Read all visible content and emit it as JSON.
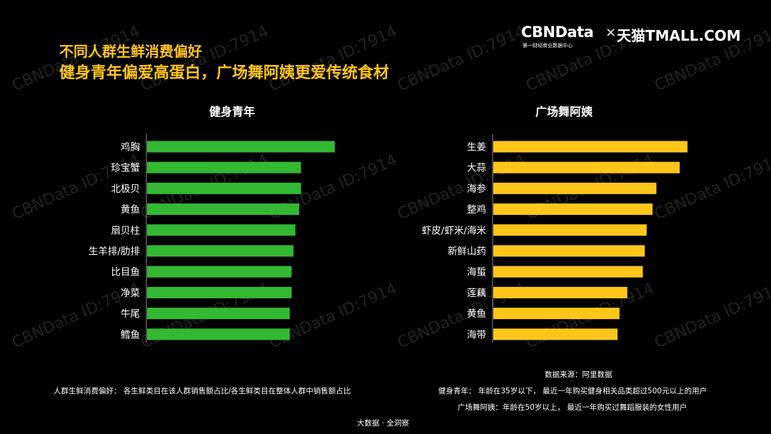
{
  "watermark": "CBNData ID:7914",
  "title": {
    "line1": "不同人群生鲜消费偏好",
    "line2": "健身青年偏爱高蛋白，广场舞阿姨更爱传统食材"
  },
  "logo": {
    "brand": "CBNData",
    "brand_sub": "第一财经商业数据中心",
    "separator": "×",
    "partner": "天猫TMALL.COM"
  },
  "colors": {
    "background": "#000000",
    "title": "#ffc61a",
    "fitness_bar": "#33b833",
    "auntie_bar": "#ffc61a"
  },
  "chart_data": [
    {
      "type": "bar",
      "orientation": "horizontal",
      "title": "健身青年",
      "categories": [
        "鸡胸",
        "珍宝蟹",
        "北极贝",
        "黄鱼",
        "扇贝柱",
        "生羊排/肋排",
        "比目鱼",
        "净菜",
        "牛尾",
        "鳕鱼"
      ],
      "values": [
        100,
        82,
        82,
        81,
        79,
        78,
        77,
        77,
        76,
        76
      ],
      "xlim": [
        0,
        100
      ],
      "grid": false,
      "color": "#33b833"
    },
    {
      "type": "bar",
      "orientation": "horizontal",
      "title": "广场舞阿姨",
      "categories": [
        "生姜",
        "大蒜",
        "海参",
        "整鸡",
        "虾皮/虾米/海米",
        "新鲜山药",
        "海蜇",
        "莲藕",
        "黄鱼",
        "海带"
      ],
      "values": [
        100,
        96,
        84,
        82,
        79,
        78,
        77,
        69,
        65,
        64
      ],
      "xlim": [
        0,
        100
      ],
      "grid": false,
      "color": "#ffc61a"
    }
  ],
  "footer": {
    "definition": "人群生鲜消费偏好： 各生鲜类目在该人群销售额占比/各生鲜类目在整体人群中销售额占比",
    "source": "数据来源：阿里数据",
    "fitness_def": "健身青年：  年龄在35岁以下， 最近一年购买健身相关品类超过500元以上的用户",
    "auntie_def": "广场舞阿姨：年龄在50岁以上， 最近一年购买过舞蹈服装的女性用户",
    "credit": "大数据 · 全洞察"
  }
}
